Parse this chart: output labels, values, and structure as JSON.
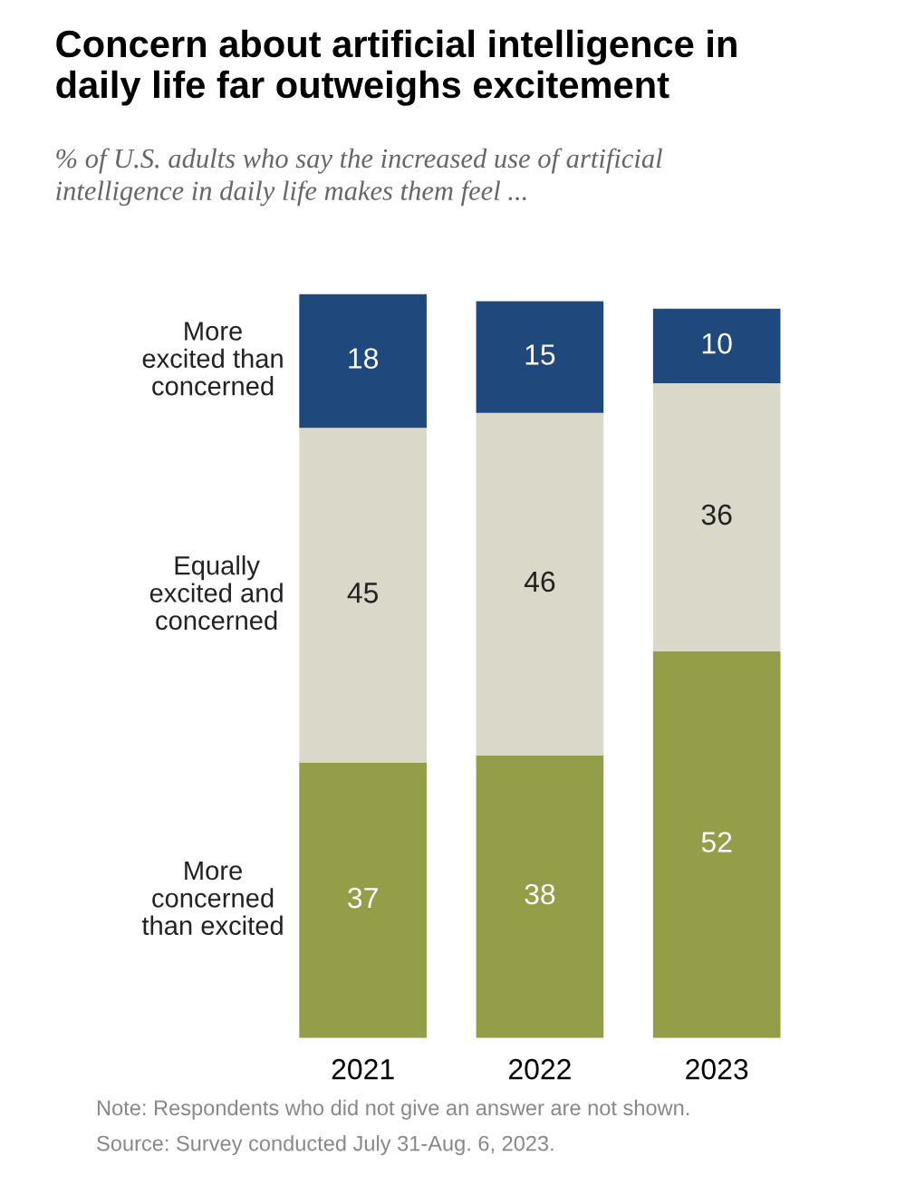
{
  "chart_data": {
    "type": "bar",
    "stacked": true,
    "title": "Concern about artificial intelligence in\ndaily life far outweighs excitement",
    "subtitle": "% of U.S. adults who say the increased use of artificial\nintelligence in daily life makes them feel ...",
    "categories": [
      "2021",
      "2022",
      "2023"
    ],
    "series": [
      {
        "name": "More\nconcerned\nthan excited",
        "color": "#949d48",
        "values": [
          37,
          38,
          52
        ]
      },
      {
        "name": "Equally\nexcited and\nconcerned",
        "color": "#dad8c8",
        "values": [
          45,
          46,
          36
        ]
      },
      {
        "name": "More\nexcited than\nconcerned",
        "color": "#1f497d",
        "values": [
          18,
          15,
          10
        ]
      }
    ],
    "ylim": [
      0,
      100
    ],
    "tick_labels": "x",
    "data_labels": true,
    "legend": false,
    "grid": false,
    "annotations": [
      "Note: Respondents who did not give an answer are not shown.",
      "Source: Survey conducted July 31-Aug. 6, 2023."
    ]
  }
}
